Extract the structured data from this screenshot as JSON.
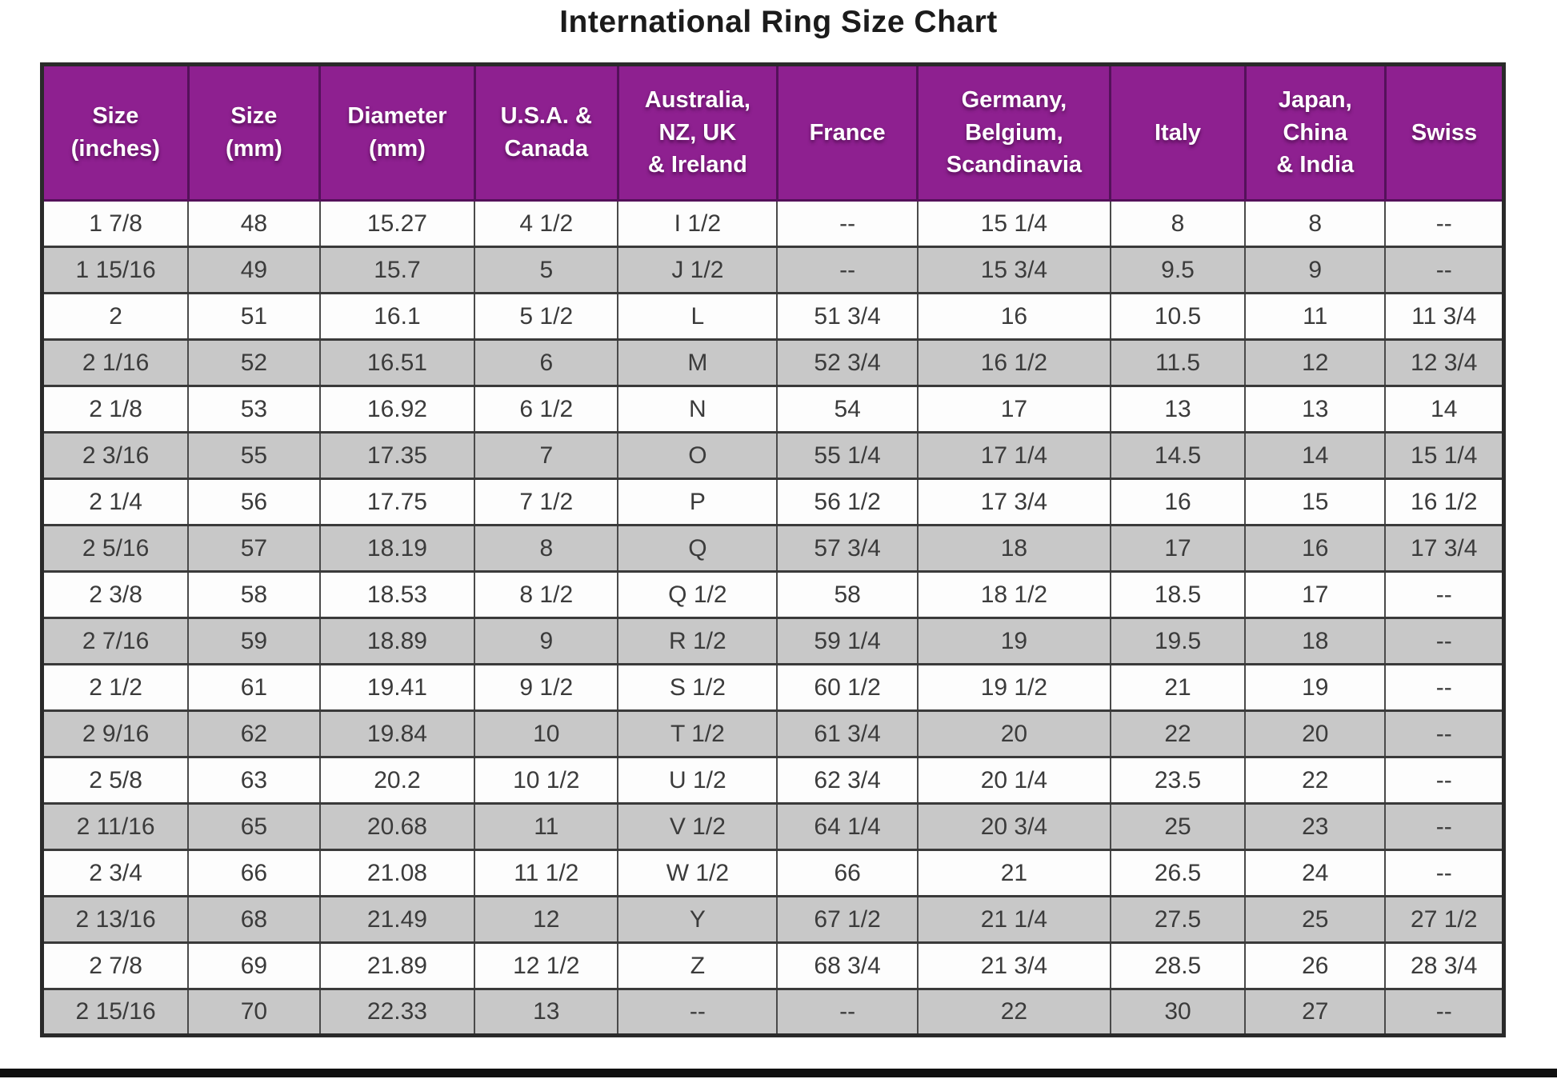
{
  "page": {
    "title": "International Ring Size Chart"
  },
  "colors": {
    "header_bg": "#8e2090",
    "header_text": "#ffffff",
    "row_bg": "#fdfdfd",
    "row_alt_bg": "#c8c8c8",
    "border": "#2a2a2a",
    "grid": "#4a4a4a",
    "cell_text": "#3b3b3b",
    "title_text": "#1b1b1b",
    "bottom_bar": "#101010"
  },
  "chart_data": {
    "type": "table",
    "title": "International Ring Size Chart",
    "columns": [
      "Size\n(inches)",
      "Size\n(mm)",
      "Diameter\n(mm)",
      "U.S.A. &\nCanada",
      "Australia,\nNZ, UK\n& Ireland",
      "France",
      "Germany,\nBelgium,\nScandinavia",
      "Italy",
      "Japan,\nChina\n& India",
      "Swiss"
    ],
    "rows": [
      [
        "1 7/8",
        "48",
        "15.27",
        "4 1/2",
        "I 1/2",
        "--",
        "15 1/4",
        "8",
        "8",
        "--"
      ],
      [
        "1 15/16",
        "49",
        "15.7",
        "5",
        "J 1/2",
        "--",
        "15 3/4",
        "9.5",
        "9",
        "--"
      ],
      [
        "2",
        "51",
        "16.1",
        "5 1/2",
        "L",
        "51 3/4",
        "16",
        "10.5",
        "11",
        "11 3/4"
      ],
      [
        "2 1/16",
        "52",
        "16.51",
        "6",
        "M",
        "52 3/4",
        "16 1/2",
        "11.5",
        "12",
        "12 3/4"
      ],
      [
        "2 1/8",
        "53",
        "16.92",
        "6 1/2",
        "N",
        "54",
        "17",
        "13",
        "13",
        "14"
      ],
      [
        "2 3/16",
        "55",
        "17.35",
        "7",
        "O",
        "55 1/4",
        "17 1/4",
        "14.5",
        "14",
        "15 1/4"
      ],
      [
        "2 1/4",
        "56",
        "17.75",
        "7 1/2",
        "P",
        "56 1/2",
        "17 3/4",
        "16",
        "15",
        "16 1/2"
      ],
      [
        "2 5/16",
        "57",
        "18.19",
        "8",
        "Q",
        "57 3/4",
        "18",
        "17",
        "16",
        "17 3/4"
      ],
      [
        "2 3/8",
        "58",
        "18.53",
        "8 1/2",
        "Q 1/2",
        "58",
        "18 1/2",
        "18.5",
        "17",
        "--"
      ],
      [
        "2 7/16",
        "59",
        "18.89",
        "9",
        "R 1/2",
        "59 1/4",
        "19",
        "19.5",
        "18",
        "--"
      ],
      [
        "2 1/2",
        "61",
        "19.41",
        "9 1/2",
        "S 1/2",
        "60 1/2",
        "19 1/2",
        "21",
        "19",
        "--"
      ],
      [
        "2 9/16",
        "62",
        "19.84",
        "10",
        "T 1/2",
        "61 3/4",
        "20",
        "22",
        "20",
        "--"
      ],
      [
        "2 5/8",
        "63",
        "20.2",
        "10 1/2",
        "U 1/2",
        "62 3/4",
        "20 1/4",
        "23.5",
        "22",
        "--"
      ],
      [
        "2 11/16",
        "65",
        "20.68",
        "11",
        "V 1/2",
        "64 1/4",
        "20 3/4",
        "25",
        "23",
        "--"
      ],
      [
        "2 3/4",
        "66",
        "21.08",
        "11 1/2",
        "W 1/2",
        "66",
        "21",
        "26.5",
        "24",
        "--"
      ],
      [
        "2 13/16",
        "68",
        "21.49",
        "12",
        "Y",
        "67 1/2",
        "21 1/4",
        "27.5",
        "25",
        "27 1/2"
      ],
      [
        "2 7/8",
        "69",
        "21.89",
        "12 1/2",
        "Z",
        "68 3/4",
        "21 3/4",
        "28.5",
        "26",
        "28 3/4"
      ],
      [
        "2 15/16",
        "70",
        "22.33",
        "13",
        "--",
        "--",
        "22",
        "30",
        "27",
        "--"
      ]
    ],
    "layout": {
      "header_position": "top",
      "row_striping": "white-gray-alternating",
      "column_width_pct": [
        10.0,
        9.0,
        10.6,
        9.8,
        10.9,
        9.6,
        13.2,
        9.2,
        9.6,
        8.1
      ]
    }
  }
}
